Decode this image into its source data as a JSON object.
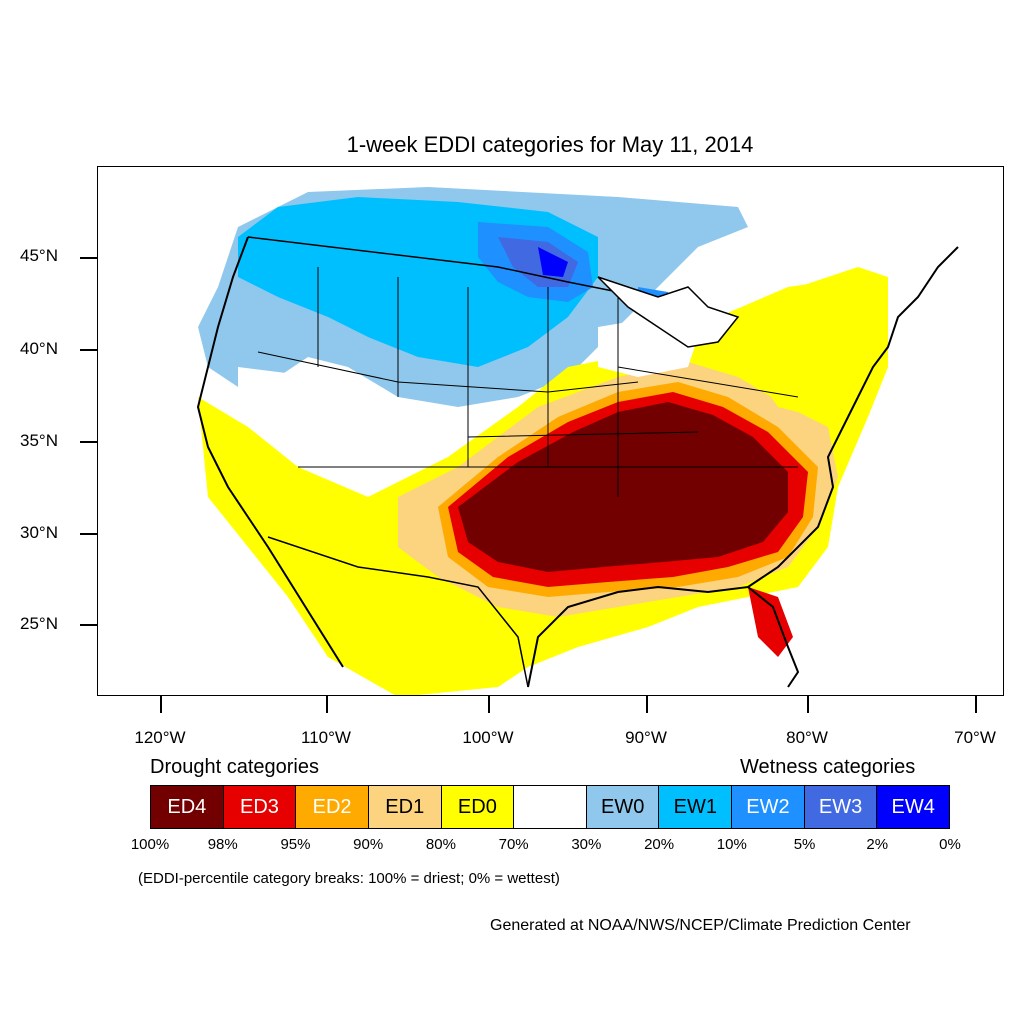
{
  "title": "1-week EDDI categories for May 11, 2014",
  "map": {
    "lat_labels": [
      "45°N",
      "40°N",
      "35°N",
      "30°N",
      "25°N"
    ],
    "lon_labels": [
      "120°W",
      "110°W",
      "100°W",
      "90°W",
      "80°W",
      "70°W"
    ],
    "colors": {
      "ED4": "#730000",
      "ED3": "#e60000",
      "ED2": "#ffaa00",
      "ED1": "#fcd37f",
      "ED0": "#ffff00",
      "NONE": "#ffffff",
      "EW0": "#8fc8ec",
      "EW1": "#00bfff",
      "EW2": "#1e90ff",
      "EW3": "#4169e1",
      "EW4": "#0000ff"
    }
  },
  "legend": {
    "drought_heading": "Drought categories",
    "wetness_heading": "Wetness categories",
    "categories": [
      {
        "label": "ED4",
        "color": "#730000",
        "text_color": "#ffffff"
      },
      {
        "label": "ED3",
        "color": "#e60000",
        "text_color": "#ffffff"
      },
      {
        "label": "ED2",
        "color": "#ffaa00",
        "text_color": "#ffffff"
      },
      {
        "label": "ED1",
        "color": "#fcd37f",
        "text_color": "#000000"
      },
      {
        "label": "ED0",
        "color": "#ffff00",
        "text_color": "#000000"
      },
      {
        "label": "",
        "color": "#ffffff",
        "text_color": "#000000"
      },
      {
        "label": "EW0",
        "color": "#8fc8ec",
        "text_color": "#000000"
      },
      {
        "label": "EW1",
        "color": "#00bfff",
        "text_color": "#000000"
      },
      {
        "label": "EW2",
        "color": "#1e90ff",
        "text_color": "#ffffff"
      },
      {
        "label": "EW3",
        "color": "#4169e1",
        "text_color": "#ffffff"
      },
      {
        "label": "EW4",
        "color": "#0000ff",
        "text_color": "#ffffff"
      }
    ],
    "percentiles": [
      "100%",
      "98%",
      "95%",
      "90%",
      "80%",
      "70%",
      "30%",
      "20%",
      "10%",
      "5%",
      "2%",
      "0%"
    ]
  },
  "note": "(EDDI-percentile category breaks: 100% = driest; 0% = wettest)",
  "credit": "Generated at NOAA/NWS/NCEP/Climate Prediction Center"
}
